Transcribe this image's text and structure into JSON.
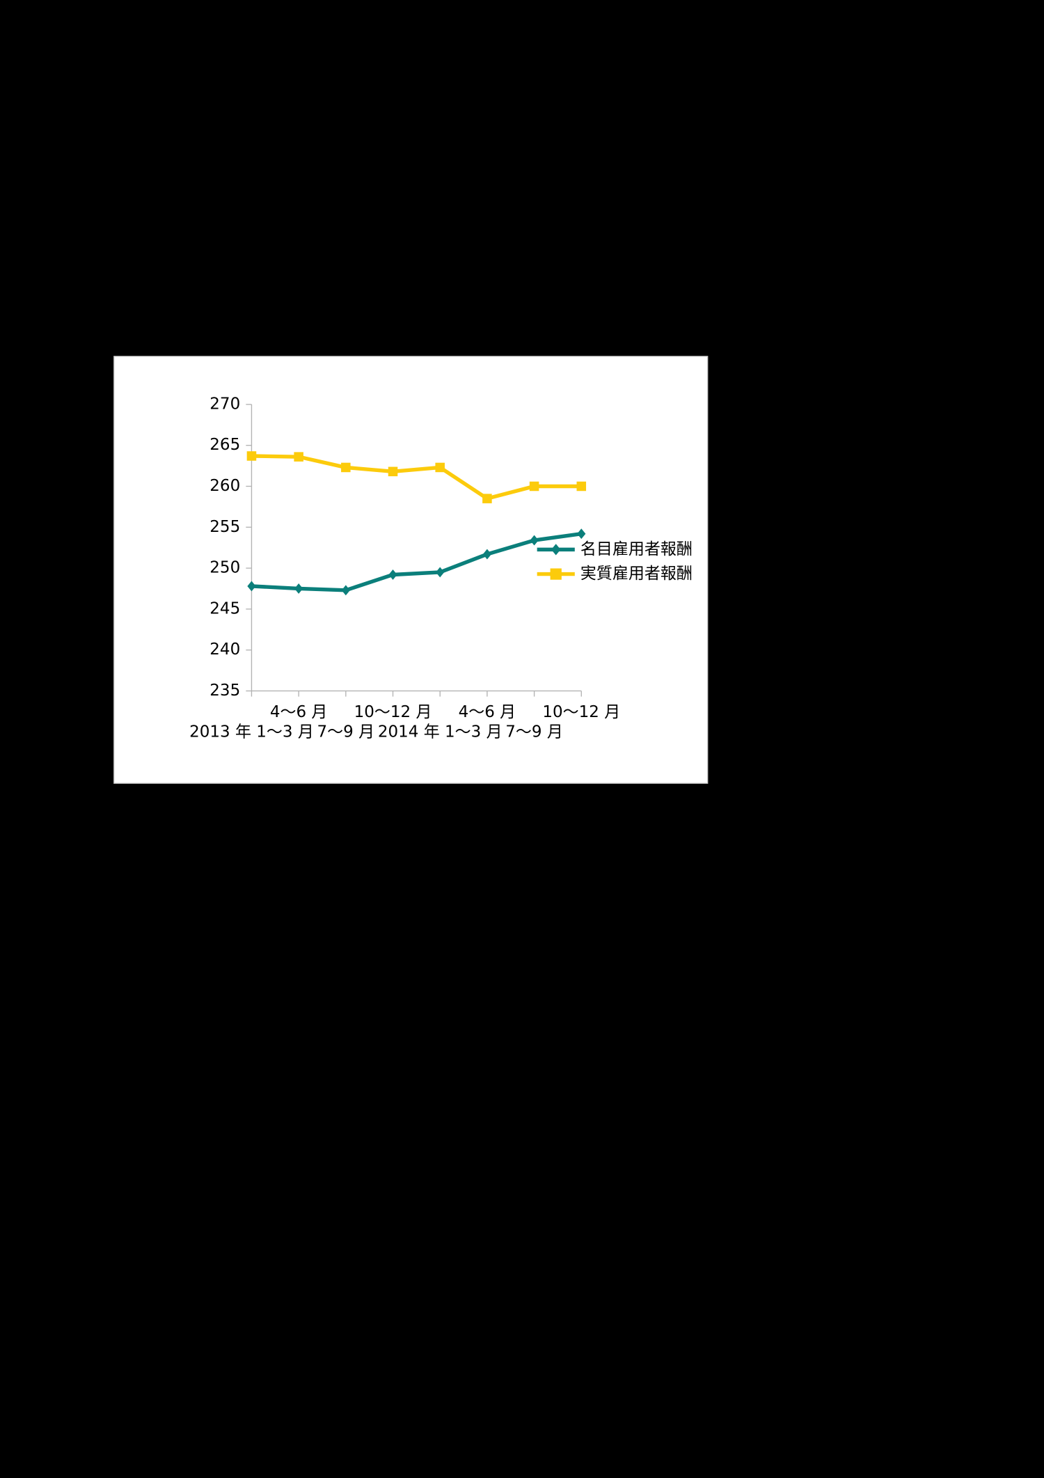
{
  "chart_data": {
    "type": "line",
    "categories": [
      "2013 年 1〜3 月",
      "4〜6 月",
      "7〜9 月",
      "10〜12 月",
      "2014 年 1〜3 月",
      "4〜6 月",
      "7〜9 月",
      "10〜12 月"
    ],
    "series": [
      {
        "name": "名目雇用者報酬",
        "color": "#0b7f7b",
        "marker": "diamond",
        "values": [
          247.8,
          247.5,
          247.3,
          249.2,
          249.5,
          251.7,
          253.4,
          254.2
        ]
      },
      {
        "name": "実質雇用者報酬",
        "color": "#fccb0c",
        "marker": "square",
        "values": [
          263.7,
          263.6,
          262.3,
          261.8,
          262.3,
          258.5,
          260.0,
          260.0
        ]
      }
    ],
    "ylim": [
      235,
      270
    ],
    "yticks": [
      235,
      240,
      245,
      250,
      255,
      260,
      265,
      270
    ],
    "grid": false,
    "legend": "right"
  }
}
